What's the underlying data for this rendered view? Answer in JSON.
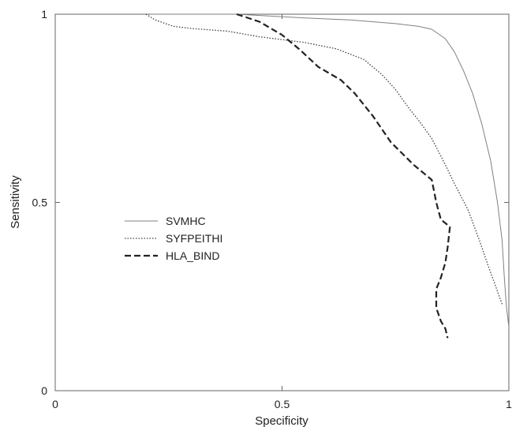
{
  "chart_data": {
    "type": "line",
    "title": "",
    "xlabel": "Specificity",
    "ylabel": "Sensitivity",
    "xlim": [
      0,
      1
    ],
    "ylim": [
      0,
      1
    ],
    "xticks": [
      {
        "value": 0,
        "label": "0"
      },
      {
        "value": 0.5,
        "label": "0.5"
      },
      {
        "value": 1,
        "label": "1"
      }
    ],
    "yticks": [
      {
        "value": 0,
        "label": "0"
      },
      {
        "value": 0.5,
        "label": "0.5"
      },
      {
        "value": 1,
        "label": "1"
      }
    ],
    "grid": false,
    "legend_position": "center-left",
    "series": [
      {
        "name": "SVMHC",
        "style": "solid",
        "color": "#808080",
        "points": [
          [
            0.21,
            1.0
          ],
          [
            0.4,
            1.0
          ],
          [
            0.55,
            0.99
          ],
          [
            0.65,
            0.985
          ],
          [
            0.75,
            0.975
          ],
          [
            0.8,
            0.968
          ],
          [
            0.83,
            0.96
          ],
          [
            0.86,
            0.935
          ],
          [
            0.88,
            0.9
          ],
          [
            0.9,
            0.85
          ],
          [
            0.92,
            0.79
          ],
          [
            0.94,
            0.71
          ],
          [
            0.96,
            0.61
          ],
          [
            0.975,
            0.5
          ],
          [
            0.985,
            0.4
          ],
          [
            0.99,
            0.3
          ],
          [
            0.995,
            0.22
          ],
          [
            1.0,
            0.17
          ]
        ]
      },
      {
        "name": "SYFPEITHI",
        "style": "dotted",
        "color": "#404040",
        "points": [
          [
            0.2,
            1.0
          ],
          [
            0.22,
            0.985
          ],
          [
            0.26,
            0.968
          ],
          [
            0.3,
            0.962
          ],
          [
            0.38,
            0.955
          ],
          [
            0.45,
            0.94
          ],
          [
            0.55,
            0.925
          ],
          [
            0.62,
            0.908
          ],
          [
            0.68,
            0.88
          ],
          [
            0.72,
            0.84
          ],
          [
            0.75,
            0.8
          ],
          [
            0.78,
            0.75
          ],
          [
            0.8,
            0.72
          ],
          [
            0.83,
            0.67
          ],
          [
            0.86,
            0.6
          ],
          [
            0.88,
            0.55
          ],
          [
            0.91,
            0.48
          ],
          [
            0.935,
            0.4
          ],
          [
            0.955,
            0.33
          ],
          [
            0.97,
            0.28
          ],
          [
            0.985,
            0.23
          ]
        ]
      },
      {
        "name": "HLA_BIND",
        "style": "dashed",
        "color": "#222222",
        "points": [
          [
            0.4,
            1.0
          ],
          [
            0.45,
            0.98
          ],
          [
            0.5,
            0.945
          ],
          [
            0.54,
            0.905
          ],
          [
            0.58,
            0.86
          ],
          [
            0.63,
            0.825
          ],
          [
            0.66,
            0.79
          ],
          [
            0.7,
            0.73
          ],
          [
            0.74,
            0.66
          ],
          [
            0.79,
            0.6
          ],
          [
            0.83,
            0.56
          ],
          [
            0.84,
            0.5
          ],
          [
            0.85,
            0.455
          ],
          [
            0.87,
            0.435
          ],
          [
            0.865,
            0.38
          ],
          [
            0.86,
            0.34
          ],
          [
            0.85,
            0.3
          ],
          [
            0.84,
            0.27
          ],
          [
            0.84,
            0.22
          ],
          [
            0.85,
            0.185
          ],
          [
            0.86,
            0.165
          ],
          [
            0.865,
            0.14
          ]
        ]
      }
    ]
  }
}
